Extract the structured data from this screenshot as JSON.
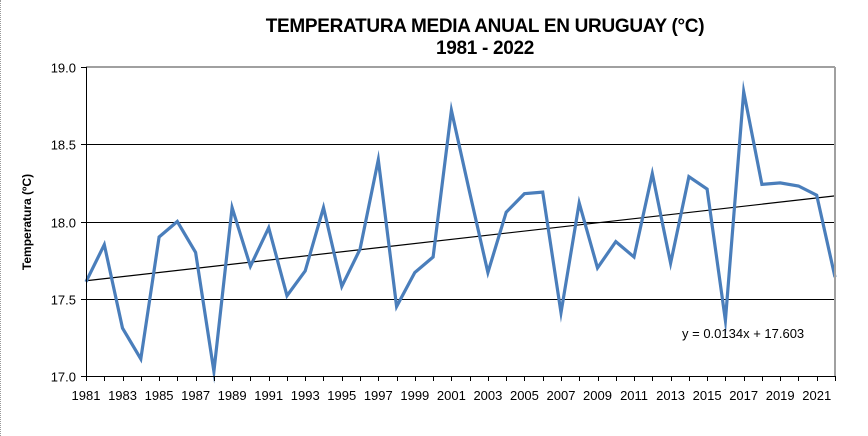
{
  "chart_data": {
    "type": "line",
    "title": "TEMPERATURA MEDIA ANUAL  EN URUGUAY  (°C)",
    "subtitle": "1981 - 2022",
    "xlabel": "",
    "ylabel": "Temperatura (ºC)",
    "ylim": [
      17.0,
      19.0
    ],
    "yticks": [
      "17.0",
      "17.5",
      "18.0",
      "18.5",
      "19.0"
    ],
    "xtick_labels": [
      "1981",
      "1983",
      "1985",
      "1987",
      "1989",
      "1991",
      "1993",
      "1995",
      "1997",
      "1999",
      "2001",
      "2003",
      "2005",
      "2007",
      "2009",
      "2011",
      "2013",
      "2015",
      "2017",
      "2019",
      "2021"
    ],
    "grid": "horizontal",
    "x": [
      1981,
      1982,
      1983,
      1984,
      1985,
      1986,
      1987,
      1988,
      1989,
      1990,
      1991,
      1992,
      1993,
      1994,
      1995,
      1996,
      1997,
      1998,
      1999,
      2000,
      2001,
      2002,
      2003,
      2004,
      2005,
      2006,
      2007,
      2008,
      2009,
      2010,
      2011,
      2012,
      2013,
      2014,
      2015,
      2016,
      2017,
      2018,
      2019,
      2020,
      2021,
      2022
    ],
    "series": [
      {
        "name": "Temperatura media anual",
        "color": "#4a7ebb",
        "values": [
          17.61,
          17.85,
          17.31,
          17.11,
          17.9,
          18.0,
          17.8,
          17.03,
          18.09,
          17.71,
          17.96,
          17.52,
          17.68,
          18.09,
          17.58,
          17.82,
          18.4,
          17.45,
          17.67,
          17.77,
          18.72,
          18.19,
          17.67,
          18.06,
          18.18,
          18.19,
          17.41,
          18.12,
          17.7,
          17.87,
          17.77,
          18.31,
          17.73,
          18.29,
          18.21,
          17.36,
          18.84,
          18.24,
          18.25,
          18.23,
          18.17,
          17.64
        ]
      }
    ],
    "trendline": {
      "type": "linear",
      "slope": 0.0134,
      "intercept": 17.603,
      "equation_label": "y = 0.0134x + 17.603",
      "color": "#000000"
    }
  }
}
